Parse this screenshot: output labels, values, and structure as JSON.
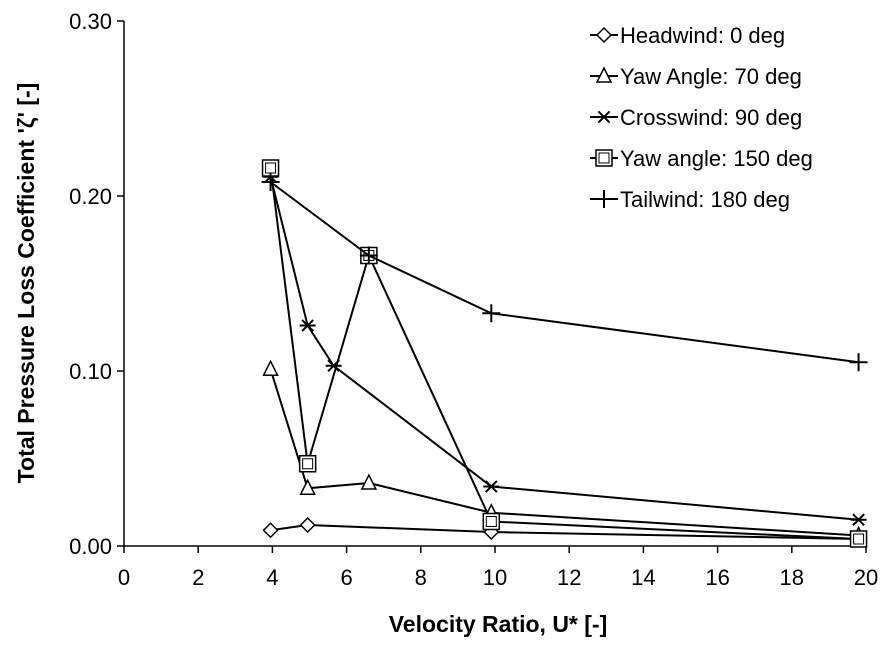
{
  "chart_data": {
    "type": "line",
    "xlabel": "Velocity Ratio, U* [-]",
    "ylabel": "Total Pressure Loss Coefficient 'ζ' [-]",
    "xlim": [
      0,
      20
    ],
    "ylim": [
      0,
      0.3
    ],
    "x_ticks": [
      "0",
      "2",
      "4",
      "6",
      "8",
      "10",
      "12",
      "14",
      "16",
      "18",
      "20"
    ],
    "y_ticks": [
      "0.00",
      "0.10",
      "0.20",
      "0.30"
    ],
    "legend_position": "top-right",
    "grid": false,
    "series": [
      {
        "name": "Headwind: 0 deg",
        "marker": "diamond",
        "x": [
          3.95,
          4.95,
          9.9,
          19.8
        ],
        "y": [
          0.009,
          0.012,
          0.008,
          0.004
        ]
      },
      {
        "name": "Yaw Angle: 70 deg",
        "marker": "triangle",
        "x": [
          3.95,
          4.95,
          6.6,
          9.9,
          19.8
        ],
        "y": [
          0.101,
          0.033,
          0.036,
          0.019,
          0.006
        ]
      },
      {
        "name": "Crosswind: 90 deg",
        "marker": "asterisk",
        "x": [
          3.95,
          4.95,
          5.65,
          9.9,
          19.8
        ],
        "y": [
          0.211,
          0.126,
          0.103,
          0.034,
          0.015
        ]
      },
      {
        "name": "Yaw angle: 150 deg",
        "marker": "square",
        "x": [
          3.95,
          4.95,
          6.6,
          9.9,
          19.8
        ],
        "y": [
          0.216,
          0.047,
          0.166,
          0.014,
          0.004
        ]
      },
      {
        "name": "Tailwind: 180 deg",
        "marker": "plus",
        "x": [
          3.95,
          6.6,
          9.9,
          19.8
        ],
        "y": [
          0.208,
          0.166,
          0.133,
          0.105
        ]
      }
    ]
  }
}
